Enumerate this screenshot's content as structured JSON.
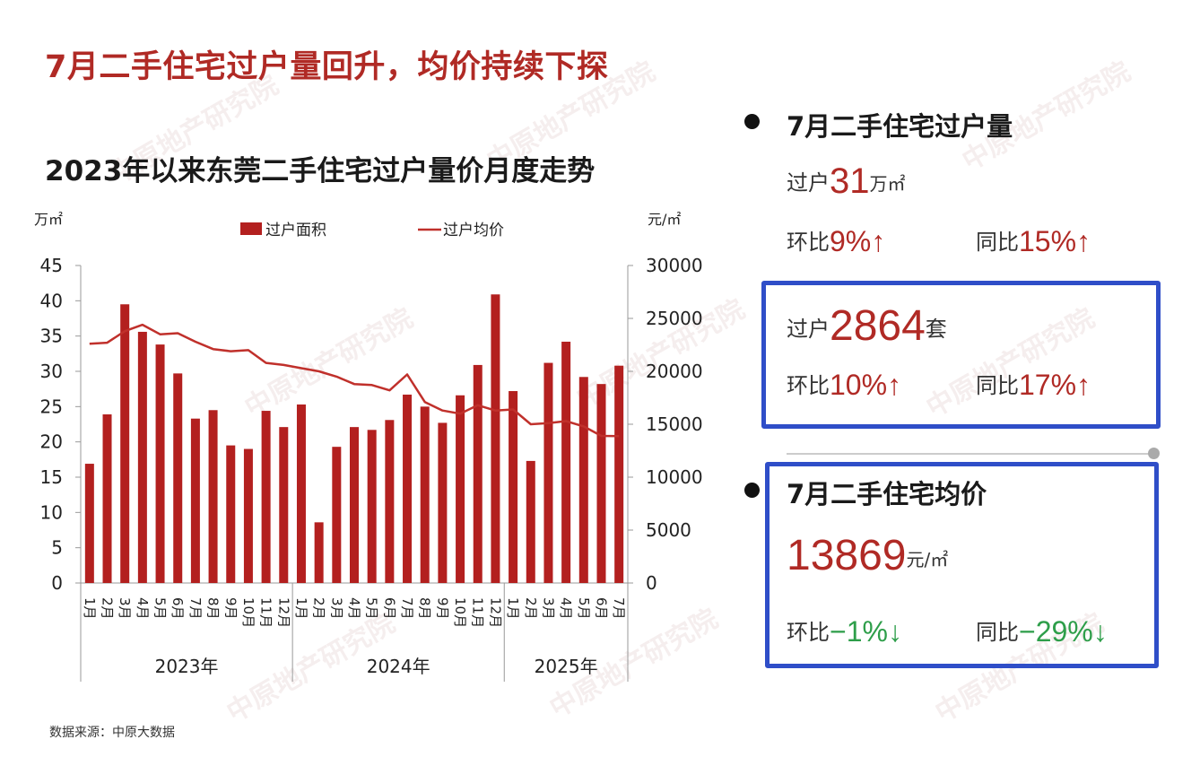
{
  "title": "7月二手住宅过户量回升，均价持续下探",
  "chart_title": "2023年以来东莞二手住宅过户量价月度走势",
  "source": "数据来源：中原大数据",
  "watermark": "中原地产研究院",
  "colors": {
    "bar": "#b3201f",
    "line": "#c0302b",
    "accent_red": "#b02a25",
    "accent_green": "#2e9e4a",
    "box": "#2f4ec8"
  },
  "chart_data": {
    "type": "bar+line",
    "left_unit": "万㎡",
    "right_unit": "元/㎡",
    "legend": {
      "bar": "过户面积",
      "line": "过户均价"
    },
    "ylim_left": [
      0,
      45
    ],
    "ylim_right": [
      0,
      30000
    ],
    "yticks_left": [
      "0",
      "5",
      "10",
      "15",
      "20",
      "25",
      "30",
      "35",
      "40",
      "45"
    ],
    "yticks_right": [
      "0",
      "5000",
      "10000",
      "15000",
      "20000",
      "25000",
      "30000"
    ],
    "years": [
      {
        "label": "2023年",
        "months": [
          "1月",
          "2月",
          "3月",
          "4月",
          "5月",
          "6月",
          "7月",
          "8月",
          "9月",
          "10月",
          "11月",
          "12月"
        ]
      },
      {
        "label": "2024年",
        "months": [
          "1月",
          "2月",
          "3月",
          "4月",
          "5月",
          "6月",
          "7月",
          "8月",
          "9月",
          "10月",
          "11月",
          "12月"
        ]
      },
      {
        "label": "2025年",
        "months": [
          "1月",
          "2月",
          "3月",
          "4月",
          "5月",
          "6月",
          "7月"
        ]
      }
    ],
    "series": [
      {
        "name": "过户面积",
        "axis": "left",
        "values": [
          16.9,
          23.9,
          39.5,
          35.6,
          33.8,
          29.7,
          23.3,
          24.5,
          19.5,
          19.0,
          24.4,
          22.1,
          25.3,
          8.6,
          19.3,
          22.1,
          21.7,
          23.1,
          26.7,
          25.0,
          22.7,
          26.6,
          30.9,
          40.9,
          27.2,
          17.3,
          31.2,
          34.2,
          29.2,
          28.2,
          30.8
        ]
      },
      {
        "name": "过户均价",
        "axis": "right",
        "values": [
          22600,
          22700,
          23800,
          24400,
          23500,
          23600,
          22800,
          22100,
          21900,
          22000,
          20800,
          20600,
          20300,
          20000,
          19500,
          18800,
          18700,
          18200,
          19700,
          17100,
          16300,
          16000,
          16800,
          16300,
          16400,
          15000,
          15100,
          15300,
          14800,
          13900,
          13869
        ]
      }
    ]
  },
  "panel": {
    "volume_title": "7月二手住宅过户量",
    "area": {
      "prefix": "过户",
      "value": "31",
      "unit": "万㎡"
    },
    "area_mom": {
      "label": "环比",
      "value": "9%",
      "arrow": "↑"
    },
    "area_yoy": {
      "label": "同比",
      "value": "15%",
      "arrow": "↑"
    },
    "units": {
      "prefix": "过户",
      "value": "2864",
      "unit": "套"
    },
    "units_mom": {
      "label": "环比",
      "value": "10%",
      "arrow": "↑"
    },
    "units_yoy": {
      "label": "同比",
      "value": "17%",
      "arrow": "↑"
    },
    "price_title": "7月二手住宅均价",
    "price": {
      "value": "13869",
      "unit": "元/㎡"
    },
    "price_mom": {
      "label": "环比",
      "value": "−1%",
      "arrow": "↓"
    },
    "price_yoy": {
      "label": "同比",
      "value": "−29%",
      "arrow": "↓"
    }
  }
}
